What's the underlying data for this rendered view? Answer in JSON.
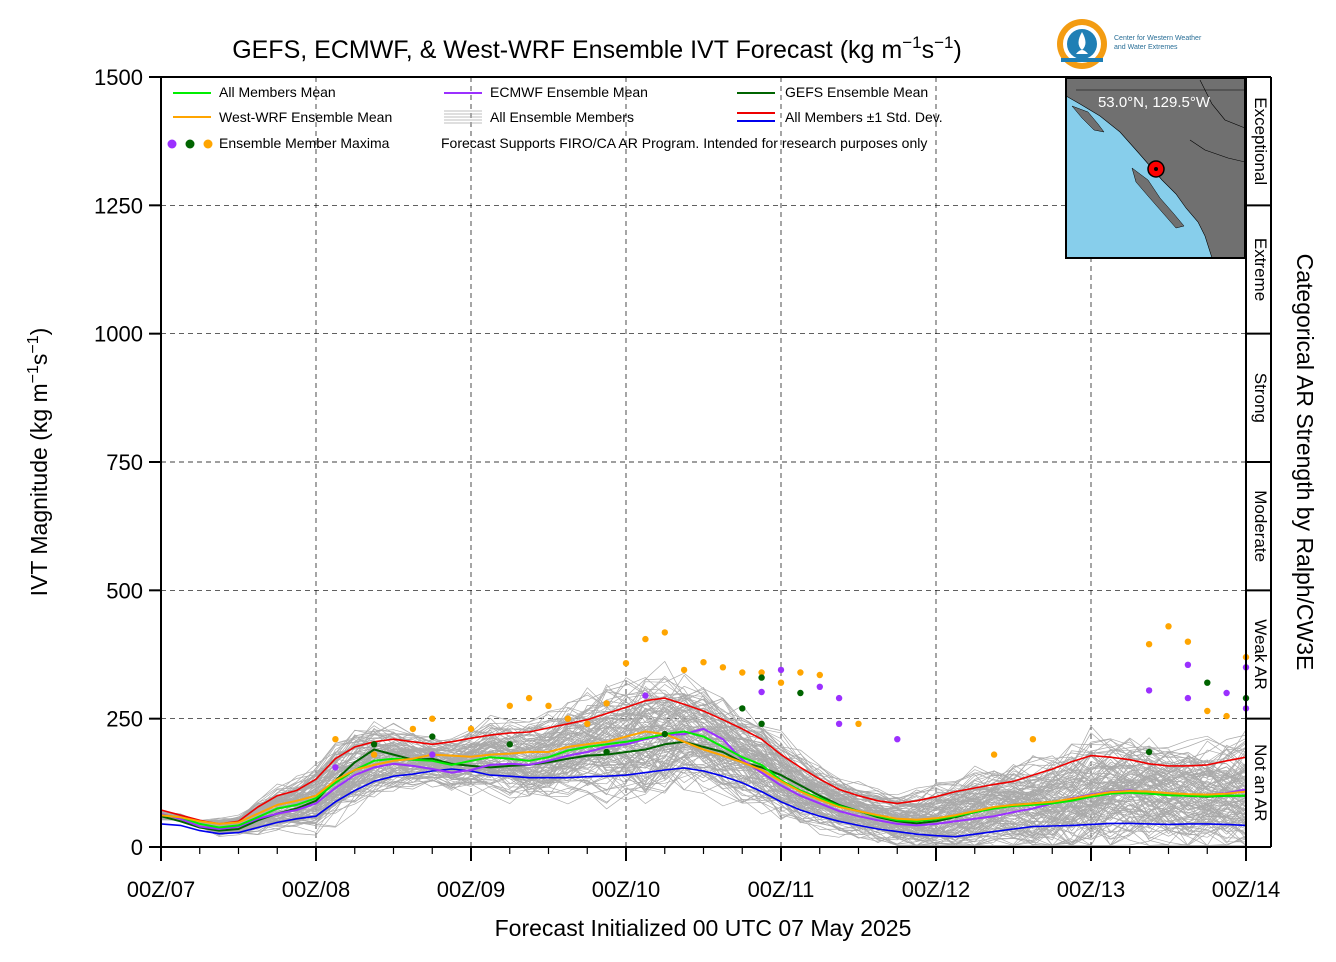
{
  "title": {
    "prefix": "GEFS, ECMWF, & West-WRF Ensemble IVT Forecast (kg m",
    "sup1": "−1",
    "mid": "s",
    "sup2": "−1",
    "suffix": ")"
  },
  "logo_text": {
    "line1": "Center for Western Weather",
    "line2": "and Water Extremes"
  },
  "ylabel": {
    "prefix": "IVT Magnitude (kg m",
    "sup1": "−1",
    "mid": "s",
    "sup2": "−1",
    "suffix": ")"
  },
  "xlabel": "Forecast Initialized 00 UTC 07 May 2025",
  "right_label": "Categorical AR Strength by Ralph/CW3E",
  "inset_label": "53.0°N, 129.5°W",
  "disclaimer": "Forecast Supports FIRO/CA AR Program. Intended for research purposes only",
  "legend": [
    {
      "label": "All Members Mean",
      "color": "#00ee00",
      "kind": "line"
    },
    {
      "label": "ECMWF Ensemble Mean",
      "color": "#9b30ff",
      "kind": "line"
    },
    {
      "label": "GEFS Ensemble Mean",
      "color": "#006400",
      "kind": "line"
    },
    {
      "label": "West-WRF Ensemble Mean",
      "color": "#ffa500",
      "kind": "line"
    },
    {
      "label": "All Ensemble Members",
      "color": "#aaaaaa",
      "kind": "multiline"
    },
    {
      "label": "All Members ±1 Std. Dev.",
      "color": "#ee0000",
      "color2": "#0000ee",
      "kind": "twoline"
    },
    {
      "label": "Ensemble Member Maxima",
      "color": "#9b30ff",
      "color2": "#006400",
      "color3": "#ffa500",
      "kind": "dots"
    }
  ],
  "colors": {
    "all_mean": "#00ee00",
    "ecmwf_mean": "#9b30ff",
    "gefs_mean": "#006400",
    "wrf_mean": "#ffa500",
    "members": "#aaaaaa",
    "std_upper": "#ee0000",
    "std_lower": "#0000ee",
    "inset_ocean": "#87ceeb",
    "inset_land": "#707070"
  },
  "chart_data": {
    "type": "line",
    "xlabel": "Forecast Initialized 00 UTC 07 May 2025",
    "ylabel": "IVT Magnitude (kg m−1s−1)",
    "x_unit": "forecast hour",
    "xlim": [
      0,
      168
    ],
    "ylim": [
      0,
      1500
    ],
    "x_tick_hours": [
      0,
      24,
      48,
      72,
      96,
      120,
      144,
      168
    ],
    "x_tick_labels": [
      "00Z/07",
      "00Z/08",
      "00Z/09",
      "00Z/10",
      "00Z/11",
      "00Z/12",
      "00Z/13",
      "00Z/14"
    ],
    "y_ticks": [
      0,
      250,
      500,
      750,
      1000,
      1250,
      1500
    ],
    "grid": true,
    "legend_position": "top-left",
    "categories_right_axis": [
      {
        "label": "Not an AR",
        "range": [
          0,
          250
        ]
      },
      {
        "label": "Weak AR",
        "range": [
          250,
          500
        ]
      },
      {
        "label": "Moderate",
        "range": [
          500,
          750
        ]
      },
      {
        "label": "Strong",
        "range": [
          750,
          1000
        ]
      },
      {
        "label": "Extreme",
        "range": [
          1000,
          1250
        ]
      },
      {
        "label": "Exceptional",
        "range": [
          1250,
          1500
        ]
      }
    ],
    "x": [
      0,
      3,
      6,
      9,
      12,
      15,
      18,
      21,
      24,
      27,
      30,
      33,
      36,
      39,
      42,
      45,
      48,
      51,
      54,
      57,
      60,
      63,
      66,
      69,
      72,
      75,
      78,
      81,
      84,
      87,
      90,
      93,
      96,
      99,
      102,
      105,
      108,
      111,
      114,
      117,
      120,
      123,
      126,
      129,
      132,
      135,
      138,
      141,
      144,
      147,
      150,
      153,
      156,
      159,
      162,
      165,
      168
    ],
    "series": [
      {
        "name": "All Members Mean",
        "values": [
          62,
          58,
          45,
          38,
          42,
          58,
          75,
          82,
          95,
          125,
          150,
          168,
          172,
          170,
          168,
          160,
          168,
          175,
          172,
          168,
          175,
          188,
          195,
          200,
          205,
          212,
          220,
          225,
          215,
          195,
          175,
          160,
          130,
          110,
          95,
          80,
          70,
          60,
          52,
          50,
          54,
          60,
          68,
          75,
          80,
          82,
          85,
          90,
          98,
          104,
          106,
          104,
          101,
          100,
          99,
          100,
          100
        ]
      },
      {
        "name": "ECMWF Ensemble Mean",
        "values": [
          64,
          55,
          40,
          35,
          40,
          55,
          65,
          72,
          85,
          115,
          140,
          155,
          162,
          158,
          152,
          145,
          150,
          160,
          162,
          160,
          168,
          178,
          185,
          195,
          200,
          210,
          218,
          220,
          230,
          210,
          170,
          145,
          120,
          100,
          85,
          70,
          60,
          52,
          45,
          42,
          45,
          50,
          55,
          60,
          68,
          75,
          85,
          95,
          102,
          108,
          110,
          106,
          103,
          102,
          102,
          105,
          112
        ]
      },
      {
        "name": "GEFS Ensemble Mean",
        "values": [
          60,
          50,
          38,
          32,
          35,
          52,
          65,
          75,
          90,
          130,
          165,
          190,
          180,
          170,
          172,
          162,
          158,
          155,
          158,
          160,
          165,
          172,
          178,
          180,
          185,
          190,
          200,
          205,
          195,
          185,
          165,
          155,
          140,
          120,
          100,
          82,
          70,
          58,
          50,
          46,
          50,
          58,
          68,
          76,
          82,
          85,
          88,
          92,
          100,
          106,
          107,
          104,
          102,
          100,
          98,
          100,
          100
        ]
      },
      {
        "name": "West-WRF Ensemble Mean",
        "values": [
          62,
          58,
          50,
          45,
          48,
          65,
          82,
          90,
          100,
          130,
          150,
          160,
          168,
          172,
          180,
          178,
          176,
          180,
          182,
          185,
          185,
          195,
          200,
          205,
          215,
          225,
          220,
          205,
          190,
          178,
          165,
          150,
          128,
          108,
          92,
          78,
          70,
          62,
          55,
          53,
          56,
          62,
          70,
          78,
          82,
          85,
          88,
          94,
          101,
          107,
          109,
          108,
          105,
          103,
          102,
          104,
          108
        ]
      },
      {
        "name": "All Members +1 Std. Dev.",
        "values": [
          72,
          62,
          52,
          45,
          50,
          78,
          100,
          110,
          132,
          172,
          195,
          205,
          210,
          205,
          200,
          205,
          212,
          218,
          222,
          224,
          232,
          240,
          248,
          260,
          272,
          285,
          290,
          278,
          265,
          248,
          230,
          210,
          180,
          155,
          132,
          112,
          100,
          90,
          85,
          90,
          98,
          108,
          115,
          122,
          128,
          140,
          152,
          166,
          178,
          175,
          170,
          162,
          158,
          158,
          160,
          168,
          175
        ]
      },
      {
        "name": "All Members −1 Std. Dev.",
        "values": [
          45,
          42,
          32,
          26,
          28,
          38,
          48,
          55,
          60,
          88,
          110,
          128,
          138,
          142,
          148,
          152,
          148,
          140,
          138,
          135,
          135,
          135,
          137,
          138,
          140,
          145,
          150,
          154,
          148,
          138,
          125,
          108,
          88,
          72,
          60,
          50,
          42,
          35,
          30,
          25,
          22,
          20,
          25,
          30,
          35,
          40,
          41,
          42,
          44,
          46,
          46,
          45,
          44,
          45,
          45,
          44,
          42
        ]
      }
    ],
    "member_count": 130,
    "maxima": {
      "ecmwf": [
        [
          27,
          155
        ],
        [
          42,
          180
        ],
        [
          75,
          295
        ],
        [
          93,
          302
        ],
        [
          96,
          345
        ],
        [
          102,
          312
        ],
        [
          105,
          240
        ],
        [
          105,
          290
        ],
        [
          114,
          210
        ],
        [
          153,
          305
        ],
        [
          159,
          355
        ],
        [
          159,
          290
        ],
        [
          165,
          300
        ],
        [
          168,
          350
        ],
        [
          168,
          270
        ]
      ],
      "gefs": [
        [
          33,
          200
        ],
        [
          42,
          215
        ],
        [
          54,
          200
        ],
        [
          69,
          185
        ],
        [
          78,
          220
        ],
        [
          90,
          270
        ],
        [
          93,
          240
        ],
        [
          93,
          330
        ],
        [
          99,
          300
        ],
        [
          153,
          185
        ],
        [
          162,
          320
        ],
        [
          168,
          290
        ]
      ],
      "wrf": [
        [
          27,
          210
        ],
        [
          33,
          180
        ],
        [
          39,
          230
        ],
        [
          42,
          250
        ],
        [
          48,
          230
        ],
        [
          54,
          275
        ],
        [
          57,
          290
        ],
        [
          60,
          275
        ],
        [
          63,
          250
        ],
        [
          66,
          240
        ],
        [
          69,
          280
        ],
        [
          72,
          358
        ],
        [
          75,
          405
        ],
        [
          78,
          418
        ],
        [
          81,
          345
        ],
        [
          84,
          360
        ],
        [
          87,
          350
        ],
        [
          90,
          340
        ],
        [
          93,
          340
        ],
        [
          96,
          320
        ],
        [
          99,
          340
        ],
        [
          102,
          335
        ],
        [
          108,
          240
        ],
        [
          129,
          180
        ],
        [
          135,
          210
        ],
        [
          153,
          395
        ],
        [
          156,
          430
        ],
        [
          159,
          400
        ],
        [
          162,
          265
        ],
        [
          168,
          370
        ],
        [
          165,
          255
        ]
      ]
    }
  }
}
